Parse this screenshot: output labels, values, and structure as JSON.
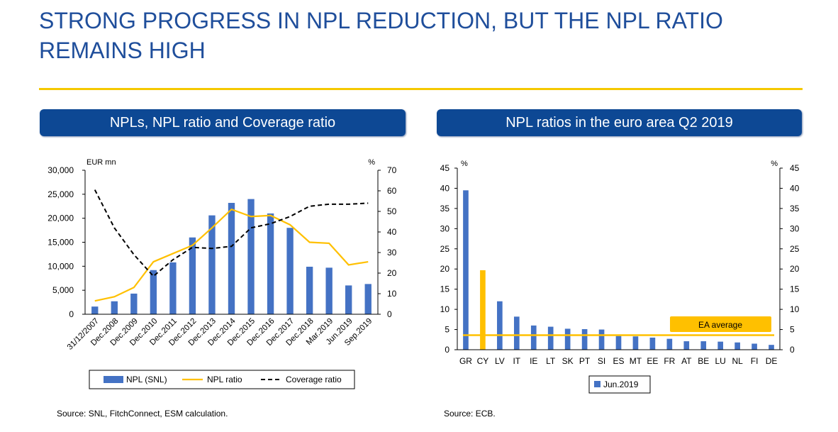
{
  "title": "STRONG PROGRESS IN NPL REDUCTION, BUT THE NPL RATIO REMAINS HIGH",
  "left_panel": {
    "heading": "NPLs, NPL ratio and Coverage ratio",
    "source": "Source: SNL, FitchConnect, ESM calculation."
  },
  "right_panel": {
    "heading": "NPL ratios in the euro area Q2 2019",
    "source": "Source: ECB."
  },
  "colors": {
    "title": "#1f4e9b",
    "heading_bg": "#0d4894",
    "rule": "#f5c800",
    "bar": "#4472c4",
    "yellow": "#ffc000",
    "black": "#000000"
  },
  "chart_data": [
    {
      "type": "bar",
      "categories": [
        "31/12/2007",
        "Dec.2008",
        "Dec.2009",
        "Dec.2010",
        "Dec.2011",
        "Dec.2012",
        "Dec.2013",
        "Dec.2014",
        "Dec.2015",
        "Dec.2016",
        "Dec.2017",
        "Dec.2018",
        "Mar.2019",
        "Jun.2019",
        "Sep.2019"
      ],
      "left_unit": "EUR mn",
      "right_unit": "%",
      "left_ylim": [
        0,
        30000
      ],
      "left_ticks": [
        "0",
        "5,000",
        "10,000",
        "15,000",
        "20,000",
        "25,000",
        "30,000"
      ],
      "right_ylim": [
        0,
        70
      ],
      "right_ticks": [
        "0",
        "10",
        "20",
        "30",
        "40",
        "50",
        "60",
        "70"
      ],
      "series": [
        {
          "name": "NPL (SNL)",
          "type": "bar",
          "axis": "left",
          "values": [
            1600,
            2700,
            4300,
            9200,
            10800,
            16000,
            20600,
            23200,
            24000,
            21000,
            18000,
            9900,
            9700,
            6000,
            6300
          ]
        },
        {
          "name": "NPL ratio",
          "type": "line",
          "axis": "right",
          "style": "solid",
          "values": [
            6.5,
            8.5,
            13,
            25.5,
            29.5,
            33.5,
            42,
            51,
            47.5,
            48,
            43.5,
            35,
            34.5,
            24,
            25.5
          ]
        },
        {
          "name": "Coverage ratio",
          "type": "line",
          "axis": "right",
          "style": "dashed",
          "values": [
            60.5,
            42,
            29,
            18.5,
            26.5,
            32.5,
            32,
            33,
            42,
            44,
            47.5,
            52.5,
            53.5,
            53.5,
            54
          ]
        }
      ],
      "legend_position": "bottom"
    },
    {
      "type": "bar",
      "categories": [
        "GR",
        "CY",
        "LV",
        "IT",
        "IE",
        "LT",
        "SK",
        "PT",
        "SI",
        "ES",
        "MT",
        "EE",
        "FR",
        "AT",
        "BE",
        "LU",
        "NL",
        "FI",
        "DE"
      ],
      "left_unit": "%",
      "right_unit": "%",
      "ylim": [
        0,
        45
      ],
      "ticks": [
        "0",
        "5",
        "10",
        "15",
        "20",
        "25",
        "30",
        "35",
        "40",
        "45"
      ],
      "series": [
        {
          "name": "Jun.2019",
          "values": [
            39.5,
            19.7,
            12,
            8.2,
            6,
            5.7,
            5.2,
            5.1,
            5,
            3.4,
            3.3,
            3,
            2.7,
            2.1,
            2.1,
            2,
            1.8,
            1.5,
            1.2
          ]
        }
      ],
      "highlight_category": "CY",
      "ea_average": 3.6,
      "ea_average_label": "EA average",
      "legend_position": "bottom"
    }
  ]
}
